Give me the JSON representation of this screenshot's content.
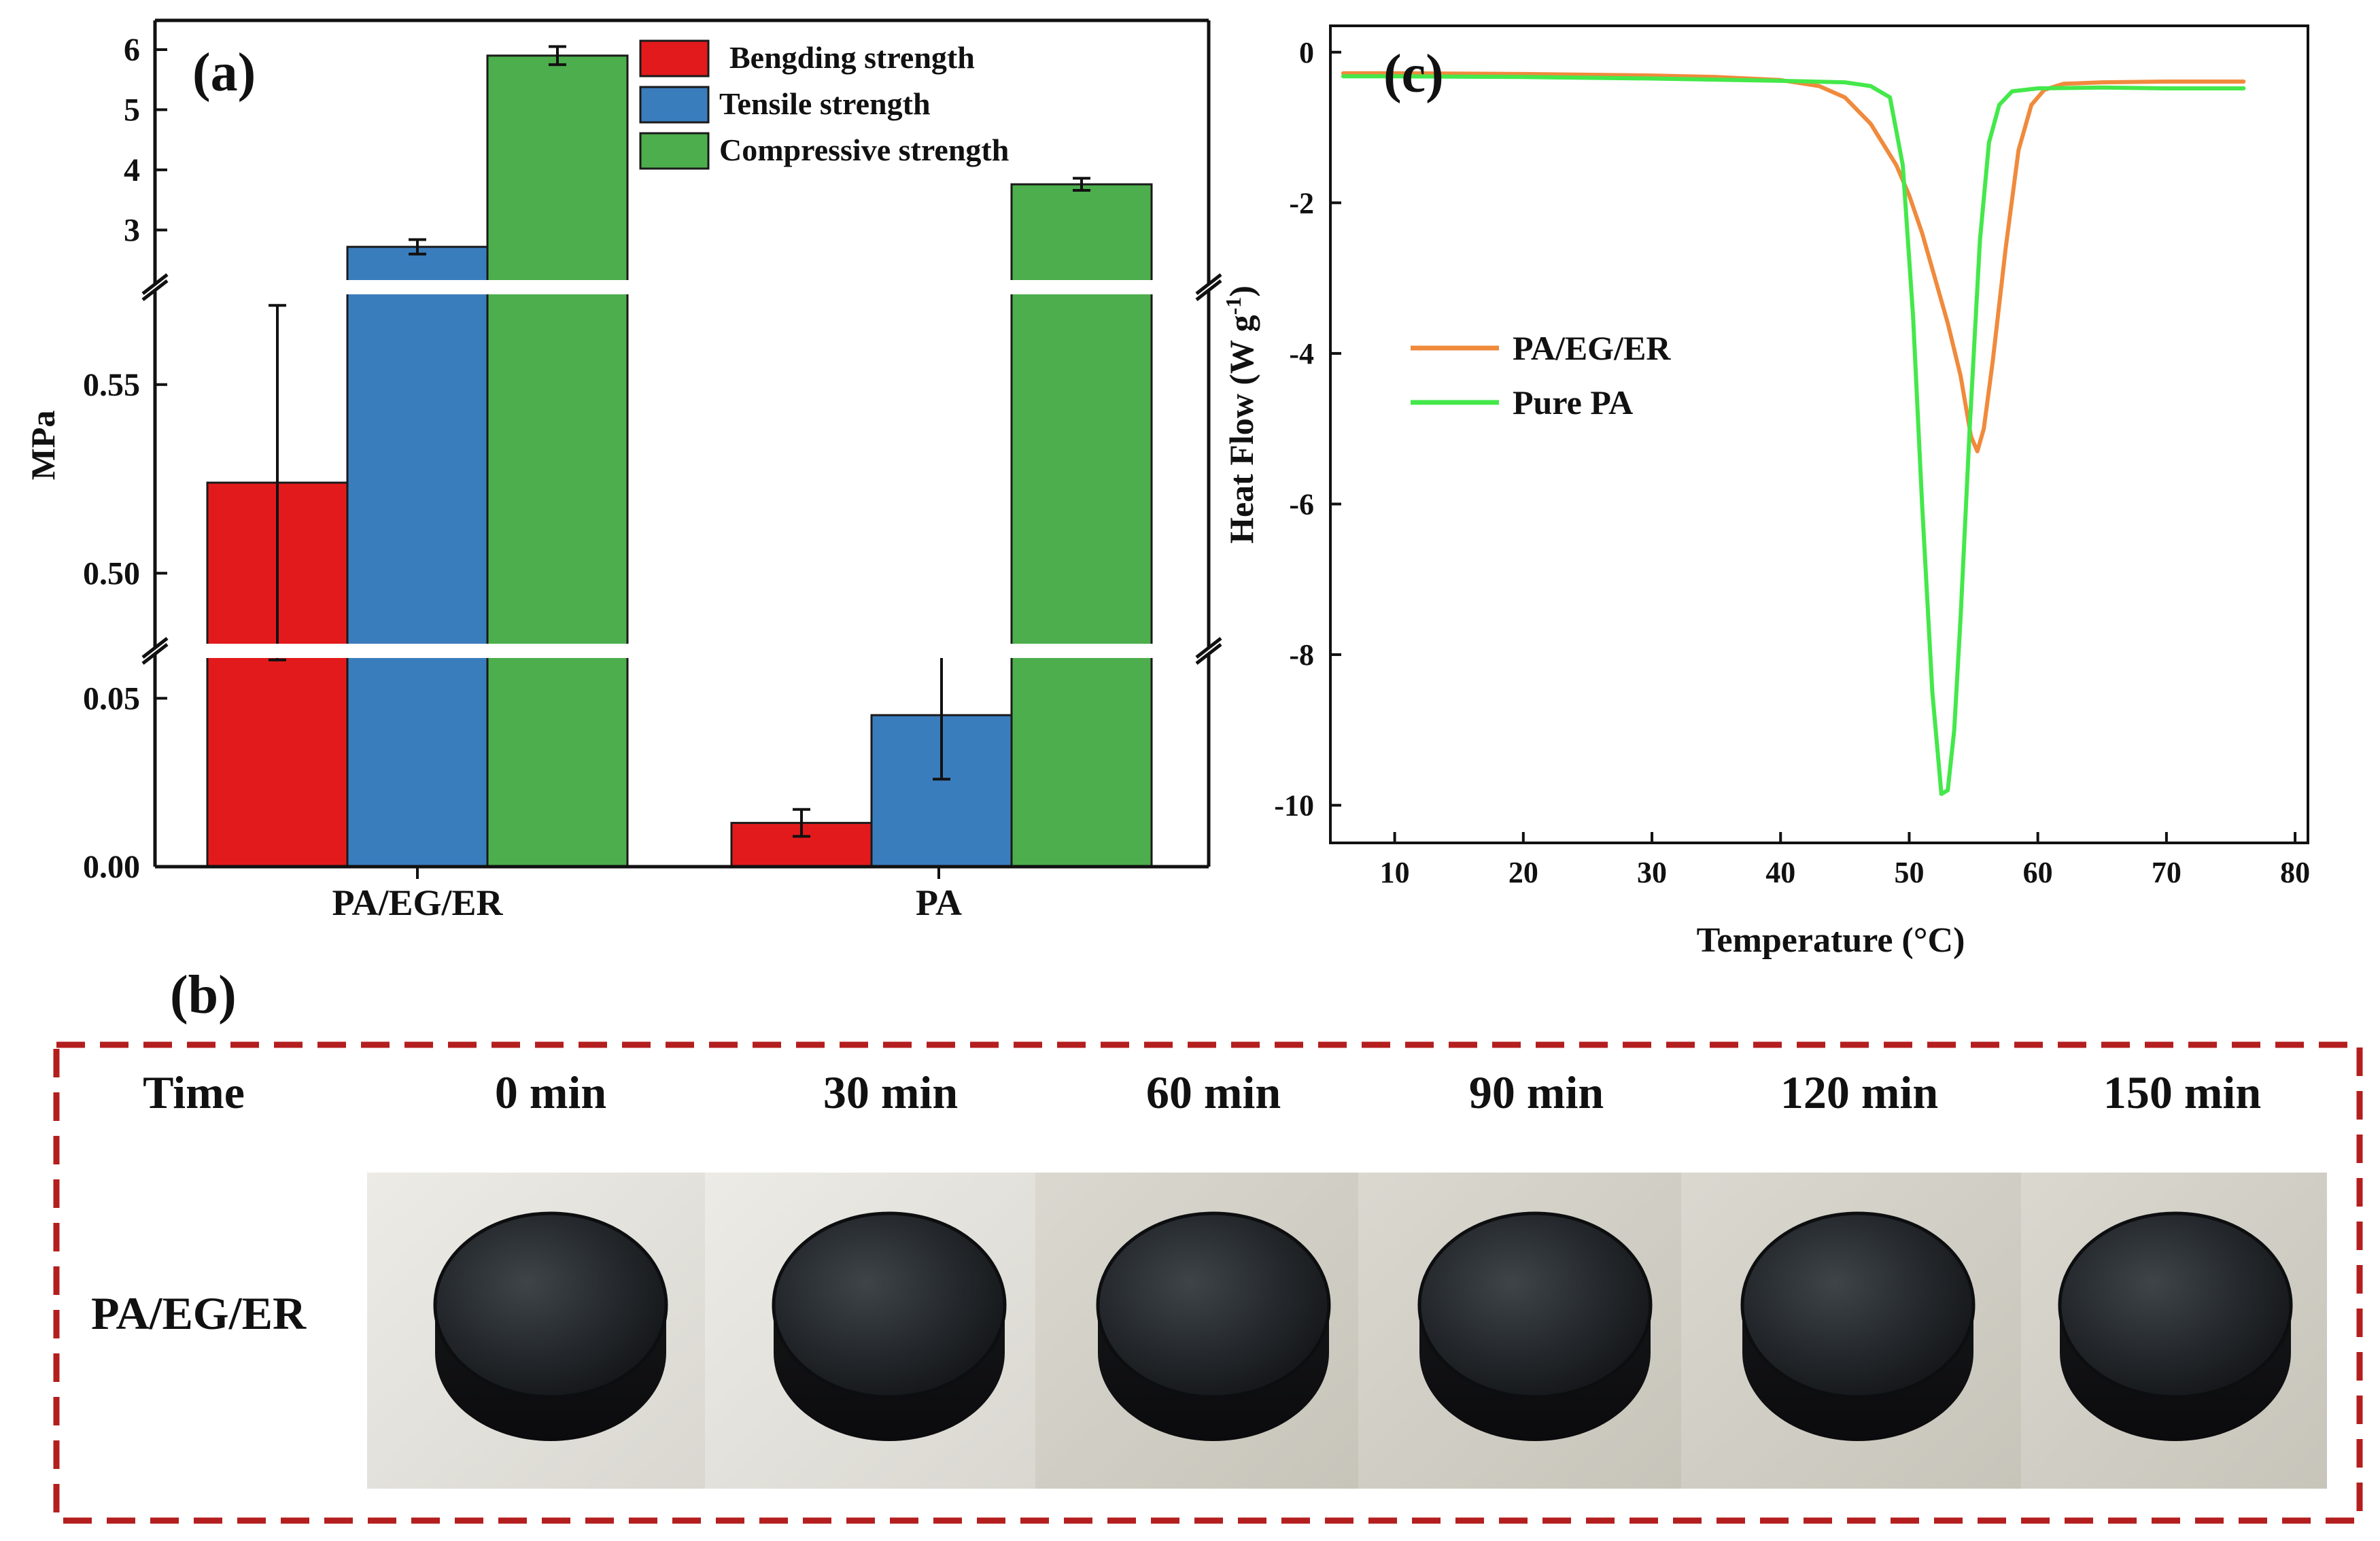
{
  "chart_data": [
    {
      "type": "bar",
      "panel_label": "(a)",
      "ylabel": "MPa",
      "categories": [
        "PA/EG/ER",
        "PA"
      ],
      "series": [
        {
          "name": "Bengding strength",
          "color": "#e31a1c",
          "values": [
            0.524,
            0.013
          ],
          "errors": [
            0.047,
            0.004
          ]
        },
        {
          "name": "Tensile strength",
          "color": "#3a7dbd",
          "values": [
            2.72,
            0.045
          ],
          "errors": [
            0.12,
            0.019
          ]
        },
        {
          "name": "Compressive strength",
          "color": "#4cae4c",
          "values": [
            5.9,
            3.76
          ],
          "errors": [
            0.15,
            0.1
          ]
        }
      ],
      "axis_segments": [
        {
          "range": [
            0,
            0.065
          ],
          "ticks": [
            "0.00",
            "0.05"
          ],
          "tick_values": [
            0,
            0.05
          ]
        },
        {
          "range": [
            0.475,
            0.575
          ],
          "ticks": [
            "0.50",
            "0.55"
          ],
          "tick_values": [
            0.5,
            0.55
          ]
        },
        {
          "range": [
            2.1,
            6.35
          ],
          "ticks": [
            "3",
            "4",
            "5",
            "6"
          ],
          "tick_values": [
            3,
            4,
            5,
            6
          ]
        }
      ]
    },
    {
      "type": "line",
      "panel_label": "(c)",
      "xlabel": "Temperature (°C)",
      "ylabel": "Heat Flow (W g",
      "ylabel_sup": "-1",
      "ylabel_close": ")",
      "xlim": [
        5,
        81
      ],
      "ylim": [
        -10.5,
        0.35
      ],
      "xticks": [
        "10",
        "20",
        "30",
        "40",
        "50",
        "60",
        "70",
        "80"
      ],
      "xtick_values": [
        10,
        20,
        30,
        40,
        50,
        60,
        70,
        80
      ],
      "yticks": [
        "0",
        "-2",
        "-4",
        "-6",
        "-8",
        "-10"
      ],
      "ytick_values": [
        0,
        -2,
        -4,
        -6,
        -8,
        -10
      ],
      "series": [
        {
          "name": "PA/EG/ER",
          "color": "#f08a3c",
          "x": [
            6,
            10,
            20,
            30,
            35,
            40,
            43,
            45,
            47,
            49,
            50,
            51,
            52,
            53,
            54,
            54.8,
            55.3,
            55.8,
            56.5,
            57.5,
            58.5,
            59.5,
            60.5,
            62,
            65,
            70,
            76
          ],
          "y": [
            -0.28,
            -0.28,
            -0.29,
            -0.31,
            -0.33,
            -0.37,
            -0.45,
            -0.6,
            -0.95,
            -1.5,
            -1.9,
            -2.4,
            -3.0,
            -3.6,
            -4.3,
            -5.1,
            -5.3,
            -5.0,
            -4.1,
            -2.6,
            -1.3,
            -0.7,
            -0.5,
            -0.42,
            -0.4,
            -0.39,
            -0.39
          ]
        },
        {
          "name": "Pure PA",
          "color": "#44e84a",
          "x": [
            6,
            10,
            20,
            30,
            40,
            45,
            47,
            48.5,
            49.5,
            50.3,
            51,
            51.8,
            52.5,
            53,
            53.5,
            54,
            54.7,
            55.5,
            56.2,
            57,
            58,
            60,
            65,
            70,
            76
          ],
          "y": [
            -0.32,
            -0.32,
            -0.33,
            -0.35,
            -0.38,
            -0.4,
            -0.45,
            -0.6,
            -1.5,
            -3.5,
            -6.0,
            -8.5,
            -9.85,
            -9.8,
            -9.0,
            -7.5,
            -5.0,
            -2.5,
            -1.2,
            -0.7,
            -0.52,
            -0.48,
            -0.47,
            -0.48,
            -0.48
          ]
        }
      ]
    }
  ],
  "panel_b": {
    "label": "(b)",
    "row_header": "Time",
    "times": [
      "0 min",
      "30 min",
      "60 min",
      "90 min",
      "120 min",
      "150 min"
    ],
    "sample": "PA/EG/ER",
    "border_color": "#b41e1e"
  }
}
